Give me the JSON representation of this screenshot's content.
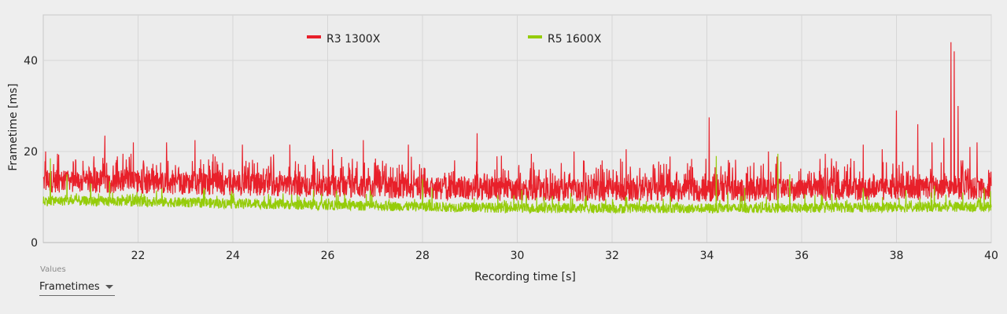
{
  "chart_data": {
    "type": "line",
    "xlabel": "Recording time [s]",
    "ylabel": "Frametime [ms]",
    "xlim": [
      20,
      40
    ],
    "ylim": [
      0,
      50
    ],
    "x_ticks": [
      22,
      24,
      26,
      28,
      30,
      32,
      34,
      36,
      38,
      40
    ],
    "y_ticks": [
      0,
      20,
      40
    ],
    "grid": true,
    "legend_position": "top-center",
    "series": [
      {
        "name": "R3 1300X",
        "color": "#e8202a",
        "baseline": [
          [
            20,
            13.5
          ],
          [
            22,
            13.2
          ],
          [
            24,
            12.8
          ],
          [
            26,
            12.4
          ],
          [
            28,
            12.0
          ],
          [
            30,
            11.6
          ],
          [
            32,
            11.5
          ],
          [
            34,
            11.4
          ],
          [
            36,
            11.6
          ],
          [
            38,
            11.8
          ],
          [
            40,
            11.8
          ]
        ],
        "spike_range": [
          9,
          19.5
        ],
        "peaks": [
          [
            20.05,
            20
          ],
          [
            20.3,
            19.5
          ],
          [
            21.3,
            23.5
          ],
          [
            21.9,
            22
          ],
          [
            22.6,
            22
          ],
          [
            23.2,
            22.5
          ],
          [
            24.2,
            21.5
          ],
          [
            25.2,
            21.5
          ],
          [
            26.1,
            20.5
          ],
          [
            26.75,
            22.5
          ],
          [
            27.7,
            21.5
          ],
          [
            29.15,
            24
          ],
          [
            30.3,
            19.5
          ],
          [
            31.2,
            20
          ],
          [
            32.3,
            20.5
          ],
          [
            34.05,
            27.5
          ],
          [
            35.3,
            20
          ],
          [
            36.5,
            19.5
          ],
          [
            37.3,
            21.5
          ],
          [
            37.7,
            20.5
          ],
          [
            38.0,
            29
          ],
          [
            38.45,
            26
          ],
          [
            38.75,
            22
          ],
          [
            39.0,
            23
          ],
          [
            39.15,
            44
          ],
          [
            39.22,
            42
          ],
          [
            39.3,
            30
          ],
          [
            39.55,
            21
          ],
          [
            39.7,
            22
          ]
        ]
      },
      {
        "name": "R5 1600X",
        "color": "#95cc0a",
        "baseline": [
          [
            20,
            9.2
          ],
          [
            22,
            9.0
          ],
          [
            24,
            8.6
          ],
          [
            26,
            8.2
          ],
          [
            28,
            7.9
          ],
          [
            30,
            7.6
          ],
          [
            32,
            7.5
          ],
          [
            34,
            7.5
          ],
          [
            36,
            7.6
          ],
          [
            38,
            7.8
          ],
          [
            40,
            7.9
          ]
        ],
        "spike_range": [
          6.5,
          11.5
        ],
        "peaks": [
          [
            20.15,
            18.5
          ],
          [
            20.5,
            15
          ],
          [
            21.0,
            13
          ],
          [
            21.4,
            13.5
          ],
          [
            22.5,
            12
          ],
          [
            23.4,
            12
          ],
          [
            25.7,
            11.5
          ],
          [
            26.9,
            11
          ],
          [
            28.0,
            14
          ],
          [
            28.2,
            12
          ],
          [
            30.1,
            11.5
          ],
          [
            34.2,
            19
          ],
          [
            34.8,
            12
          ],
          [
            35.5,
            19.5
          ],
          [
            35.75,
            15
          ],
          [
            37.3,
            12
          ],
          [
            38.2,
            11.5
          ],
          [
            38.8,
            12.5
          ],
          [
            39.4,
            11
          ],
          [
            39.85,
            12
          ]
        ]
      }
    ]
  },
  "values_control": {
    "caption": "Values",
    "selected": "Frametimes"
  }
}
